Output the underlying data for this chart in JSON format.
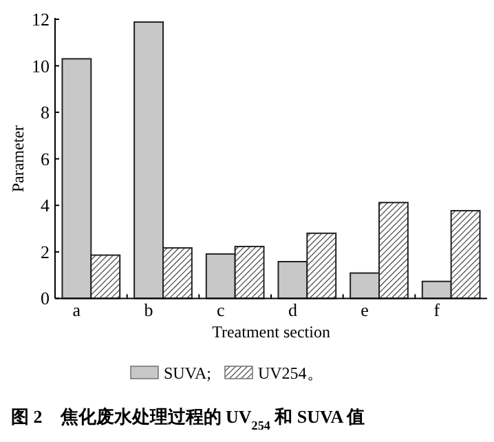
{
  "chart_data": {
    "type": "bar",
    "title": "图 2　焦化废水处理过程的 UV$_{254}$ 和 SUVA 值",
    "xlabel": "Treatment section",
    "ylabel": "Parameter",
    "categories": [
      "a",
      "b",
      "c",
      "d",
      "e",
      "f"
    ],
    "series": [
      {
        "name": "SUVA;",
        "color": "#c8c8c8",
        "values": [
          10.3,
          11.88,
          1.91,
          1.58,
          1.09,
          0.73
        ]
      },
      {
        "name": "UV254。",
        "color": "#303030",
        "values": [
          1.86,
          2.17,
          2.23,
          2.8,
          4.12,
          3.77
        ]
      }
    ],
    "ylim": [
      0,
      12
    ],
    "yticks": [
      0,
      2,
      4,
      6,
      8,
      10,
      12
    ],
    "grid": false,
    "legend": "bottom"
  }
}
